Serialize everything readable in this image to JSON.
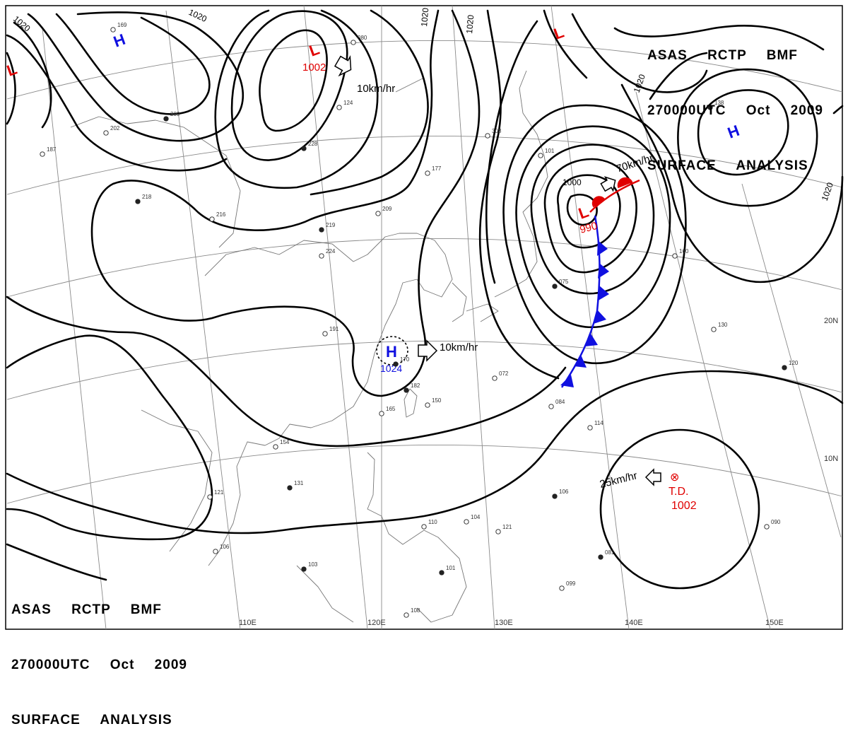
{
  "header_top": {
    "line1": "ASAS RCTP BMF",
    "line2": "270000UTC Oct 2009",
    "line3": "SURFACE ANALYSIS"
  },
  "header_bottom": {
    "line1": "ASAS RCTP BMF",
    "line2": "270000UTC Oct 2009",
    "line3": "SURFACE ANALYSIS"
  },
  "isobar_labels": [
    "1020",
    "1020",
    "1020",
    "1020",
    "1020",
    "1020",
    "1000"
  ],
  "pressure_centers": {
    "low_nw": {
      "symbol": "L",
      "value": "1002"
    },
    "low_typhoon": {
      "symbol": "L",
      "value": "990"
    },
    "low_north": {
      "symbol": "L"
    },
    "low_west": {
      "symbol": "L"
    },
    "high_north": {
      "symbol": "H"
    },
    "high_china": {
      "symbol": "H",
      "value": "1024"
    },
    "high_east": {
      "symbol": "H"
    },
    "tropical_depression": {
      "label": "T.D.",
      "value": "1002"
    }
  },
  "motion_labels": {
    "m1": "10km/hr",
    "m2": "10km/hr",
    "m3": "70km/hr",
    "m4": "25km/hr"
  },
  "longitude_labels": [
    "110E",
    "120E",
    "130E",
    "140E",
    "150E"
  ],
  "latitude_labels": [
    "20N",
    "10N"
  ],
  "station_samples": [
    "200",
    "202",
    "187",
    "218",
    "216",
    "224",
    "219",
    "209",
    "191",
    "182",
    "165",
    "154",
    "131",
    "121",
    "106",
    "103",
    "110",
    "108",
    "101",
    "104",
    "121",
    "106",
    "099",
    "090",
    "081",
    "084",
    "114",
    "120",
    "130",
    "160",
    "138",
    "308",
    "177",
    "228",
    "124",
    "101",
    "075",
    "072",
    "150",
    "170",
    "169",
    "080"
  ],
  "colors": {
    "low": "#e00000",
    "high": "#1010e0",
    "cold_front": "#1010e0",
    "warm_front": "#e00000",
    "isobar": "#000000",
    "grid": "#8a8a8a",
    "coast": "#777777"
  }
}
